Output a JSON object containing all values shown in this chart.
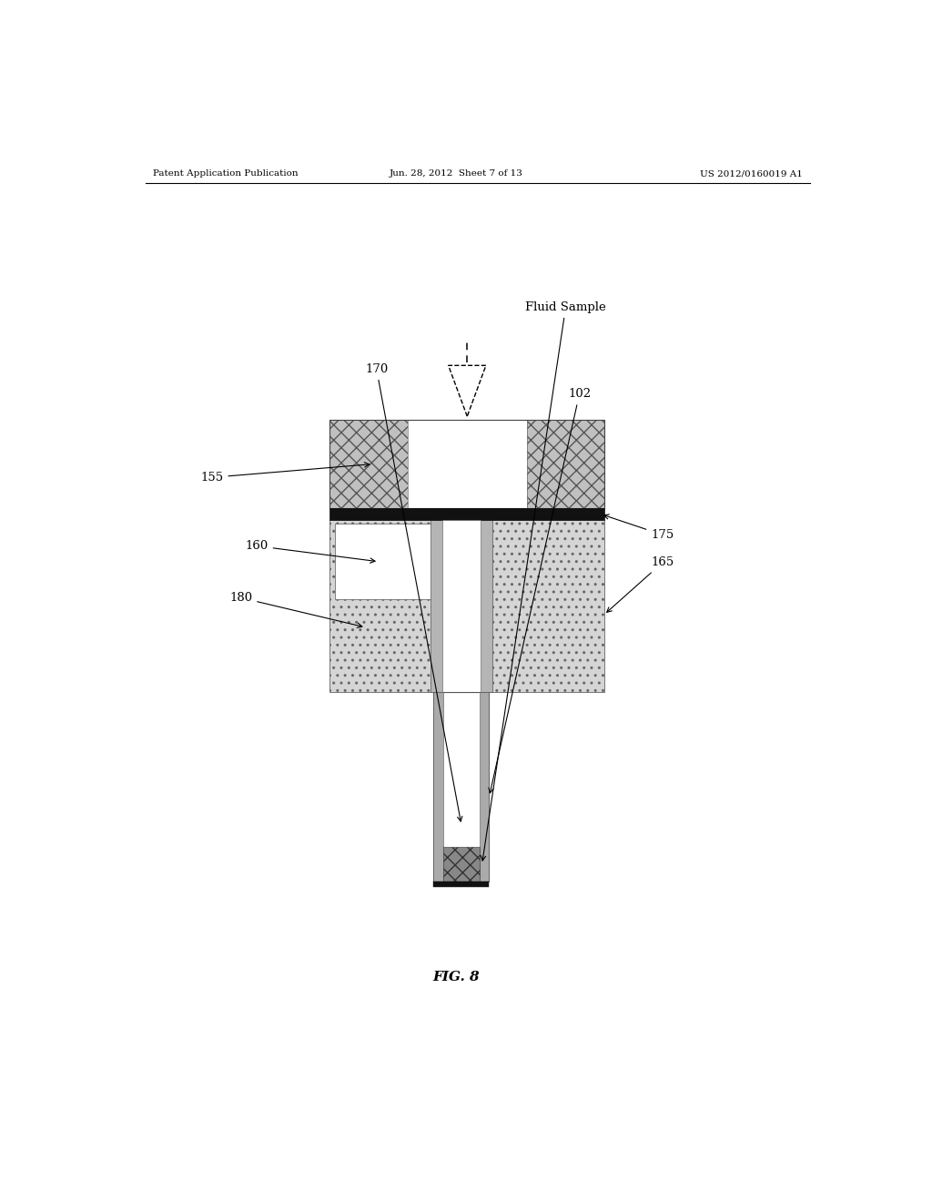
{
  "header_left": "Patent Application Publication",
  "header_mid": "Jun. 28, 2012  Sheet 7 of 13",
  "header_right": "US 2012/0160019 A1",
  "fig_label": "FIG. 8",
  "bg_color": "#ffffff",
  "label_fontsize": 9.5,
  "header_fontsize": 7.5,
  "figlabel_fontsize": 11
}
